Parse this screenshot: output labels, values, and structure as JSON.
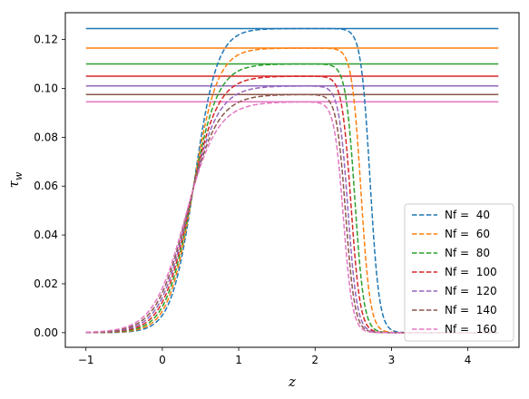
{
  "chart_data": {
    "type": "line",
    "title": "",
    "xlabel": "z",
    "ylabel": "τ_w",
    "xlim": [
      -1.27,
      4.67
    ],
    "ylim": [
      -0.006,
      0.131
    ],
    "xticks": [
      -1,
      0,
      1,
      2,
      3,
      4
    ],
    "yticks": [
      0.0,
      0.02,
      0.04,
      0.06,
      0.08,
      0.1,
      0.12
    ],
    "ytick_labels": [
      "0.00",
      "0.02",
      "0.04",
      "0.06",
      "0.08",
      "0.10",
      "0.12"
    ],
    "legend_position": "lower-right",
    "grid": false,
    "series": [
      {
        "name": "Nf =  40",
        "color": "#1f77b4",
        "plateau": 0.1245,
        "inflection_left": 0.42,
        "slope_left": 0.15,
        "inflection_right": 2.72,
        "slope_right": 0.06,
        "x_start": -1.0,
        "x_end": 4.4
      },
      {
        "name": "Nf =  60",
        "color": "#ff7f0e",
        "plateau": 0.1165,
        "inflection_left": 0.4,
        "slope_left": 0.16,
        "inflection_right": 2.6,
        "slope_right": 0.06,
        "x_start": -1.0,
        "x_end": 4.4
      },
      {
        "name": "Nf =  80",
        "color": "#2ca02c",
        "plateau": 0.11,
        "inflection_left": 0.38,
        "slope_left": 0.17,
        "inflection_right": 2.52,
        "slope_right": 0.06,
        "x_start": -1.0,
        "x_end": 4.4
      },
      {
        "name": "Nf =  100",
        "color": "#d62728",
        "plateau": 0.105,
        "inflection_left": 0.36,
        "slope_left": 0.18,
        "inflection_right": 2.47,
        "slope_right": 0.06,
        "x_start": -1.0,
        "x_end": 4.4
      },
      {
        "name": "Nf =  120",
        "color": "#9467bd",
        "plateau": 0.101,
        "inflection_left": 0.34,
        "slope_left": 0.19,
        "inflection_right": 2.43,
        "slope_right": 0.06,
        "x_start": -1.0,
        "x_end": 4.4
      },
      {
        "name": "Nf =  140",
        "color": "#8c564b",
        "plateau": 0.0975,
        "inflection_left": 0.32,
        "slope_left": 0.2,
        "inflection_right": 2.4,
        "slope_right": 0.06,
        "x_start": -1.0,
        "x_end": 4.4
      },
      {
        "name": "Nf =  160",
        "color": "#e377c2",
        "plateau": 0.0945,
        "inflection_left": 0.3,
        "slope_left": 0.21,
        "inflection_right": 2.37,
        "slope_right": 0.06,
        "x_start": -1.0,
        "x_end": 4.4
      }
    ],
    "reference_lines": [
      {
        "y": 0.1245,
        "color": "#1f77b4"
      },
      {
        "y": 0.1165,
        "color": "#ff7f0e"
      },
      {
        "y": 0.11,
        "color": "#2ca02c"
      },
      {
        "y": 0.105,
        "color": "#d62728"
      },
      {
        "y": 0.101,
        "color": "#9467bd"
      },
      {
        "y": 0.0975,
        "color": "#8c564b"
      },
      {
        "y": 0.0945,
        "color": "#e377c2"
      }
    ]
  }
}
